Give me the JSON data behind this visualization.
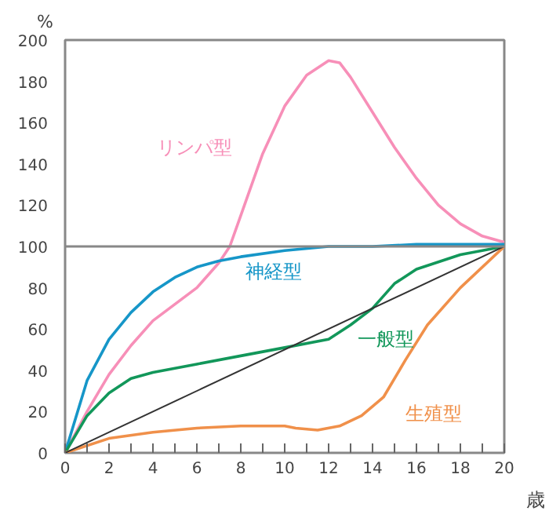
{
  "chart_data": {
    "type": "line",
    "xlabel": "歳",
    "ylabel": "%",
    "xlim": [
      0,
      20
    ],
    "ylim": [
      0,
      200
    ],
    "xticks": [
      0,
      {
        "value": 1,
        "label": null
      },
      2,
      {
        "value": 3,
        "label": null
      },
      4,
      {
        "value": 5,
        "label": null
      },
      6,
      {
        "value": 7,
        "label": null
      },
      8,
      {
        "value": 9,
        "label": null
      },
      10,
      {
        "value": 11,
        "label": null
      },
      12,
      {
        "value": 13,
        "label": null
      },
      14,
      {
        "value": 15,
        "label": null
      },
      16,
      {
        "value": 17,
        "label": null
      },
      18,
      {
        "value": 19,
        "label": null
      },
      20
    ],
    "yticks": [
      0,
      20,
      40,
      60,
      80,
      100,
      120,
      140,
      160,
      180,
      200
    ],
    "grid": false,
    "marker": "none",
    "line_style": "solid",
    "ref_lines": [
      {
        "axis": "y",
        "value": 100,
        "color": "#888888"
      }
    ],
    "series": [
      {
        "name": "リンパ型",
        "color": "#f78fb8",
        "x": [
          0,
          1,
          2,
          3,
          4,
          5,
          6,
          7,
          7.5,
          8,
          9,
          10,
          11,
          12,
          12.5,
          13,
          14,
          15,
          16,
          17,
          18,
          19,
          20
        ],
        "values": [
          0,
          20,
          38,
          52,
          64,
          72,
          80,
          92,
          100,
          115,
          145,
          168,
          183,
          190,
          189,
          182,
          165,
          148,
          133,
          120,
          111,
          105,
          102
        ]
      },
      {
        "name": "神経型",
        "color": "#1696c8",
        "x": [
          0,
          1,
          2,
          3,
          4,
          5,
          6,
          7,
          8,
          10,
          12,
          14,
          16,
          20
        ],
        "values": [
          0,
          35,
          55,
          68,
          78,
          85,
          90,
          93,
          95,
          98,
          100,
          100,
          101,
          101
        ]
      },
      {
        "name": "一般型",
        "color": "#12975a",
        "x": [
          0,
          1,
          2,
          3,
          4,
          6,
          8,
          10,
          12,
          13,
          14,
          15,
          16,
          18,
          20
        ],
        "values": [
          0,
          18,
          29,
          36,
          39,
          43,
          47,
          51,
          55,
          62,
          70,
          82,
          89,
          96,
          100
        ]
      },
      {
        "name": "生殖型",
        "color": "#f0904a",
        "x": [
          0,
          2,
          4,
          6,
          8,
          10,
          10.5,
          11.5,
          12.5,
          13.5,
          14.5,
          15.5,
          16.5,
          18,
          20
        ],
        "values": [
          0,
          7,
          10,
          12,
          13,
          13,
          12,
          11,
          13,
          18,
          27,
          45,
          62,
          80,
          100
        ]
      },
      {
        "color": "#333333",
        "x": [
          0,
          20
        ],
        "values": [
          0,
          100
        ]
      }
    ]
  }
}
